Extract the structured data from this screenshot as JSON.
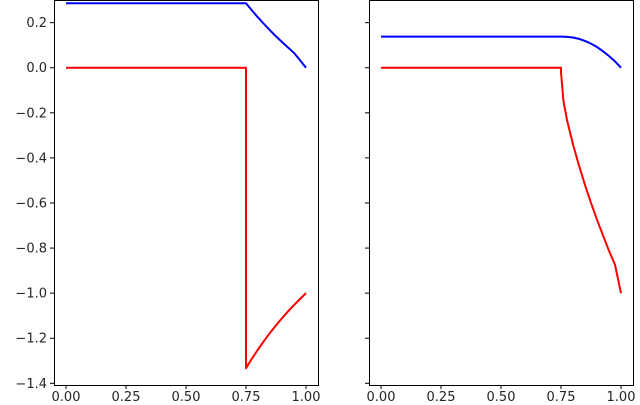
{
  "chart_data": [
    {
      "type": "line",
      "title": "",
      "xlabel": "",
      "ylabel": "",
      "xlim": [
        -0.05,
        1.05
      ],
      "ylim": [
        -1.4075,
        0.3005
      ],
      "xticks": [
        "0.00",
        "0.25",
        "0.50",
        "0.75",
        "1.00"
      ],
      "yticks": [
        "0.2",
        "0.0",
        "−0.2",
        "−0.4",
        "−0.6",
        "−0.8",
        "−1.0",
        "−1.2",
        "−1.4"
      ],
      "grid": false,
      "legend": "none",
      "series": [
        {
          "color": "#0000ff",
          "x": [
            0,
            0.75,
            0.775,
            0.8,
            0.825,
            0.85,
            0.875,
            0.9,
            0.925,
            0.95,
            0.975,
            1.0
          ],
          "y": [
            0.286,
            0.286,
            0.254,
            0.223,
            0.194,
            0.166,
            0.139,
            0.114,
            0.09,
            0.066,
            0.033,
            0.0
          ]
        },
        {
          "color": "#ff0000",
          "x": [
            0,
            0.75,
            0.75,
            0.775,
            0.8,
            0.825,
            0.85,
            0.875,
            0.9,
            0.925,
            0.95,
            0.975,
            1.0
          ],
          "y": [
            0.0,
            0.0,
            -1.333,
            -1.29,
            -1.25,
            -1.212,
            -1.176,
            -1.143,
            -1.111,
            -1.081,
            -1.053,
            -1.026,
            -1.0
          ]
        }
      ]
    },
    {
      "type": "line",
      "title": "",
      "xlabel": "",
      "ylabel": "",
      "xlim": [
        -0.05,
        1.05
      ],
      "ylim": [
        -1.4075,
        0.3005
      ],
      "xticks": [
        "0.00",
        "0.25",
        "0.50",
        "0.75",
        "1.00"
      ],
      "yticks": [],
      "grid": false,
      "legend": "none",
      "series": [
        {
          "color": "#0000ff",
          "x": [
            0,
            0.75,
            0.775,
            0.8,
            0.825,
            0.85,
            0.875,
            0.9,
            0.925,
            0.95,
            0.975,
            1.0
          ],
          "y": [
            0.138,
            0.138,
            0.137,
            0.134,
            0.128,
            0.119,
            0.107,
            0.092,
            0.073,
            0.052,
            0.028,
            0.0
          ]
        },
        {
          "color": "#ff0000",
          "x": [
            0,
            0.75,
            0.75,
            0.76,
            0.775,
            0.8,
            0.825,
            0.85,
            0.875,
            0.9,
            0.925,
            0.95,
            0.975,
            1.0
          ],
          "y": [
            0.0,
            0.0,
            -0.02,
            -0.146,
            -0.232,
            -0.34,
            -0.434,
            -0.52,
            -0.6,
            -0.674,
            -0.744,
            -0.812,
            -0.874,
            -1.0
          ]
        }
      ]
    }
  ]
}
